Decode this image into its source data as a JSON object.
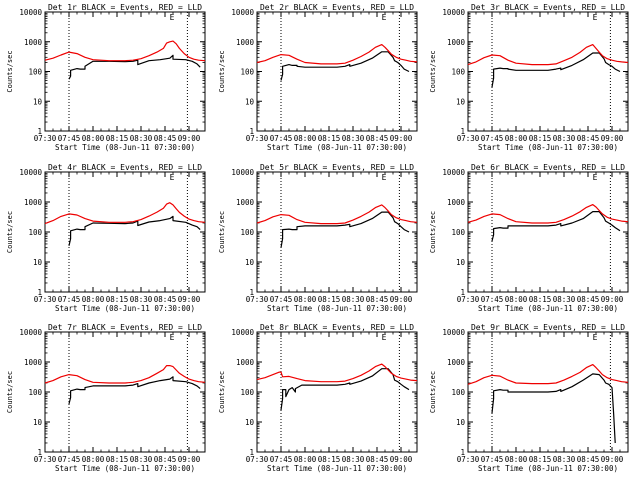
{
  "colors": {
    "events": "#000000",
    "lld": "#ee0000",
    "axis": "#000000",
    "background": "#ffffff"
  },
  "shared": {
    "ylabel": "Counts/sec",
    "xlabel": "Start Time (08-Jun-11 07:30:00)",
    "x_ticks": [
      "07:30",
      "07:45",
      "08:00",
      "08:15",
      "08:30",
      "08:45",
      "09:00"
    ],
    "y_ticks": [
      "1",
      "10",
      "100",
      "1000",
      "10000"
    ],
    "marker_E": "E"
  },
  "chart_data": [
    {
      "type": "line",
      "title": "Det 1r BLACK = Events, RED = LLD",
      "xlim": [
        0,
        100
      ],
      "ylim_log10": [
        0,
        4
      ],
      "x_unit": "minutes after 07:30",
      "y_scale": "log",
      "dashed_x": [
        15,
        89
      ],
      "series": [
        {
          "name": "BLACK = Events",
          "x": [
            15,
            16,
            16,
            20,
            22,
            25,
            25,
            30,
            40,
            50,
            55,
            58,
            58,
            65,
            72,
            78,
            80,
            80,
            88,
            92,
            95,
            97
          ],
          "y": [
            55,
            70,
            110,
            125,
            120,
            120,
            150,
            220,
            220,
            215,
            220,
            240,
            170,
            230,
            250,
            280,
            350,
            260,
            250,
            220,
            180,
            140
          ]
        },
        {
          "name": "RED = LLD",
          "x": [
            0,
            5,
            10,
            15,
            20,
            25,
            30,
            40,
            50,
            55,
            60,
            65,
            70,
            74,
            76,
            78,
            80,
            82,
            84,
            87,
            90,
            93,
            96,
            100
          ],
          "y": [
            240,
            280,
            360,
            450,
            400,
            300,
            250,
            230,
            230,
            240,
            270,
            340,
            450,
            600,
            900,
            1000,
            1050,
            850,
            600,
            400,
            300,
            260,
            240,
            230
          ]
        }
      ]
    },
    {
      "type": "line",
      "title": "Det 2r BLACK = Events, RED = LLD",
      "xlim": [
        0,
        100
      ],
      "ylim_log10": [
        0,
        4
      ],
      "x_unit": "minutes after 07:30",
      "y_scale": "log",
      "dashed_x": [
        15,
        89
      ],
      "series": [
        {
          "name": "BLACK = Events",
          "x": [
            15,
            16,
            16,
            20,
            22,
            25,
            25,
            30,
            40,
            50,
            55,
            58,
            58,
            65,
            72,
            78,
            82,
            85,
            86,
            88,
            90,
            92,
            95
          ],
          "y": [
            50,
            80,
            150,
            170,
            160,
            160,
            150,
            140,
            140,
            140,
            150,
            170,
            150,
            190,
            280,
            460,
            460,
            300,
            230,
            200,
            160,
            120,
            100
          ]
        },
        {
          "name": "RED = LLD",
          "x": [
            0,
            5,
            10,
            15,
            20,
            25,
            30,
            40,
            50,
            55,
            60,
            65,
            70,
            74,
            78,
            80,
            82,
            84,
            87,
            90,
            93,
            96,
            100
          ],
          "y": [
            200,
            230,
            300,
            370,
            350,
            260,
            200,
            180,
            180,
            190,
            240,
            320,
            450,
            650,
            800,
            650,
            500,
            380,
            300,
            260,
            240,
            220,
            210
          ]
        }
      ]
    },
    {
      "type": "line",
      "title": "Det 3r BLACK = Events, RED = LLD",
      "xlim": [
        0,
        100
      ],
      "ylim_log10": [
        0,
        4
      ],
      "x_unit": "minutes after 07:30",
      "y_scale": "log",
      "dashed_x": [
        15,
        89
      ],
      "series": [
        {
          "name": "BLACK = Events",
          "x": [
            15,
            16,
            16,
            20,
            22,
            25,
            25,
            30,
            40,
            50,
            55,
            58,
            58,
            65,
            72,
            78,
            82,
            85,
            86,
            88,
            90,
            92,
            95
          ],
          "y": [
            30,
            60,
            120,
            130,
            125,
            125,
            120,
            110,
            110,
            110,
            120,
            130,
            115,
            160,
            250,
            420,
            420,
            270,
            200,
            170,
            150,
            120,
            100
          ]
        },
        {
          "name": "RED = LLD",
          "x": [
            0,
            5,
            10,
            15,
            20,
            25,
            30,
            40,
            50,
            55,
            60,
            65,
            70,
            74,
            78,
            80,
            82,
            84,
            87,
            90,
            93,
            96,
            100
          ],
          "y": [
            170,
            210,
            290,
            360,
            340,
            240,
            190,
            170,
            170,
            180,
            230,
            300,
            440,
            650,
            800,
            600,
            450,
            340,
            270,
            240,
            220,
            210,
            200
          ]
        }
      ]
    },
    {
      "type": "line",
      "title": "Det 4r BLACK = Events, RED = LLD",
      "xlim": [
        0,
        100
      ],
      "ylim_log10": [
        0,
        4
      ],
      "x_unit": "minutes after 07:30",
      "y_scale": "log",
      "dashed_x": [
        15,
        89
      ],
      "series": [
        {
          "name": "BLACK = Events",
          "x": [
            15,
            16,
            16,
            20,
            22,
            25,
            25,
            30,
            40,
            50,
            55,
            58,
            58,
            65,
            72,
            78,
            80,
            80,
            88,
            92,
            95,
            97
          ],
          "y": [
            35,
            60,
            110,
            125,
            120,
            120,
            150,
            200,
            195,
            190,
            200,
            230,
            165,
            215,
            240,
            280,
            330,
            240,
            210,
            170,
            150,
            120
          ]
        },
        {
          "name": "RED = LLD",
          "x": [
            0,
            5,
            10,
            15,
            20,
            25,
            30,
            40,
            50,
            55,
            60,
            65,
            70,
            74,
            76,
            78,
            80,
            82,
            84,
            87,
            90,
            93,
            96,
            100
          ],
          "y": [
            190,
            240,
            330,
            400,
            370,
            280,
            230,
            210,
            210,
            220,
            260,
            340,
            460,
            620,
            850,
            950,
            800,
            600,
            450,
            340,
            270,
            240,
            220,
            210
          ]
        }
      ]
    },
    {
      "type": "line",
      "title": "Det 5r BLACK = Events, RED = LLD",
      "xlim": [
        0,
        100
      ],
      "ylim_log10": [
        0,
        4
      ],
      "x_unit": "minutes after 07:30",
      "y_scale": "log",
      "dashed_x": [
        15,
        89
      ],
      "series": [
        {
          "name": "BLACK = Events",
          "x": [
            15,
            16,
            16,
            20,
            22,
            25,
            25,
            30,
            40,
            50,
            55,
            58,
            58,
            65,
            72,
            78,
            82,
            85,
            86,
            88,
            90,
            92,
            95
          ],
          "y": [
            30,
            60,
            120,
            125,
            120,
            120,
            150,
            160,
            160,
            160,
            170,
            180,
            150,
            190,
            280,
            460,
            460,
            300,
            220,
            190,
            150,
            120,
            100
          ]
        },
        {
          "name": "RED = LLD",
          "x": [
            0,
            5,
            10,
            15,
            20,
            25,
            30,
            40,
            50,
            55,
            60,
            65,
            70,
            74,
            78,
            80,
            82,
            84,
            87,
            90,
            93,
            96,
            100
          ],
          "y": [
            200,
            240,
            320,
            380,
            360,
            260,
            210,
            190,
            190,
            200,
            250,
            330,
            460,
            650,
            800,
            650,
            500,
            380,
            300,
            260,
            240,
            220,
            210
          ]
        }
      ]
    },
    {
      "type": "line",
      "title": "Det 6r BLACK = Events, RED = LLD",
      "xlim": [
        0,
        100
      ],
      "ylim_log10": [
        0,
        4
      ],
      "x_unit": "minutes after 07:30",
      "y_scale": "log",
      "dashed_x": [
        15,
        89
      ],
      "series": [
        {
          "name": "BLACK = Events",
          "x": [
            15,
            16,
            16,
            20,
            22,
            25,
            25,
            30,
            40,
            50,
            55,
            58,
            58,
            65,
            72,
            78,
            82,
            85,
            86,
            88,
            90,
            92,
            95
          ],
          "y": [
            50,
            80,
            130,
            140,
            135,
            135,
            160,
            160,
            160,
            160,
            170,
            190,
            160,
            200,
            280,
            480,
            480,
            300,
            230,
            200,
            170,
            140,
            110
          ]
        },
        {
          "name": "RED = LLD",
          "x": [
            0,
            5,
            10,
            15,
            20,
            25,
            30,
            40,
            50,
            55,
            60,
            65,
            70,
            74,
            78,
            80,
            82,
            84,
            87,
            90,
            93,
            96,
            100
          ],
          "y": [
            210,
            250,
            330,
            400,
            380,
            280,
            220,
            200,
            200,
            210,
            260,
            340,
            470,
            660,
            820,
            680,
            520,
            400,
            310,
            270,
            250,
            230,
            220
          ]
        }
      ]
    },
    {
      "type": "line",
      "title": "Det 7r BLACK = Events, RED = LLD",
      "xlim": [
        0,
        100
      ],
      "ylim_log10": [
        0,
        4
      ],
      "x_unit": "minutes after 07:30",
      "y_scale": "log",
      "dashed_x": [
        15,
        89
      ],
      "series": [
        {
          "name": "BLACK = Events",
          "x": [
            15,
            16,
            16,
            20,
            22,
            25,
            25,
            30,
            40,
            50,
            55,
            58,
            58,
            65,
            72,
            78,
            80,
            80,
            88,
            92,
            95,
            97
          ],
          "y": [
            40,
            65,
            110,
            125,
            120,
            120,
            140,
            160,
            160,
            160,
            170,
            190,
            150,
            200,
            240,
            270,
            320,
            240,
            220,
            190,
            160,
            130
          ]
        },
        {
          "name": "RED = LLD",
          "x": [
            0,
            5,
            10,
            15,
            20,
            25,
            30,
            40,
            50,
            55,
            60,
            65,
            70,
            74,
            76,
            78,
            80,
            82,
            84,
            87,
            90,
            93,
            96,
            100
          ],
          "y": [
            200,
            240,
            320,
            380,
            350,
            260,
            210,
            200,
            200,
            210,
            240,
            300,
            420,
            560,
            760,
            760,
            700,
            540,
            420,
            330,
            270,
            240,
            220,
            210
          ]
        }
      ]
    },
    {
      "type": "line",
      "title": "Det 8r BLACK = Events, RED = LLD",
      "xlim": [
        0,
        100
      ],
      "ylim_log10": [
        0,
        4
      ],
      "x_unit": "minutes after 07:30",
      "y_scale": "log",
      "dashed_x": [
        15,
        89
      ],
      "series": [
        {
          "name": "BLACK = Events",
          "x": [
            15,
            16,
            16,
            18,
            18,
            20,
            22,
            24,
            24,
            28,
            40,
            50,
            55,
            58,
            58,
            65,
            72,
            78,
            82,
            85,
            86,
            88,
            90,
            92,
            95
          ],
          "y": [
            25,
            60,
            120,
            120,
            70,
            120,
            140,
            100,
            130,
            170,
            170,
            170,
            180,
            200,
            180,
            230,
            340,
            600,
            600,
            380,
            250,
            220,
            180,
            150,
            120
          ]
        },
        {
          "name": "RED = LLD",
          "x": [
            0,
            5,
            10,
            14,
            15,
            16,
            20,
            25,
            30,
            40,
            50,
            55,
            60,
            65,
            70,
            74,
            78,
            80,
            82,
            84,
            87,
            90,
            93,
            96,
            100
          ],
          "y": [
            260,
            300,
            380,
            460,
            460,
            320,
            330,
            280,
            240,
            220,
            220,
            230,
            280,
            360,
            500,
            700,
            850,
            700,
            540,
            420,
            330,
            290,
            270,
            250,
            240
          ]
        }
      ]
    },
    {
      "type": "line",
      "title": "Det 9r BLACK = Events, RED = LLD",
      "xlim": [
        0,
        100
      ],
      "ylim_log10": [
        0,
        4
      ],
      "x_unit": "minutes after 07:30",
      "y_scale": "log",
      "dashed_x": [
        15,
        89
      ],
      "series": [
        {
          "name": "BLACK = Events",
          "x": [
            15,
            16,
            16,
            20,
            22,
            25,
            25,
            30,
            40,
            50,
            55,
            58,
            58,
            65,
            72,
            78,
            82,
            85,
            86,
            88,
            89,
            90,
            91,
            92
          ],
          "y": [
            20,
            60,
            110,
            120,
            115,
            115,
            100,
            100,
            100,
            100,
            105,
            120,
            105,
            150,
            250,
            400,
            380,
            250,
            200,
            180,
            160,
            140,
            20,
            2
          ]
        },
        {
          "name": "RED = LLD",
          "x": [
            0,
            5,
            10,
            15,
            20,
            25,
            30,
            40,
            50,
            55,
            60,
            65,
            70,
            74,
            78,
            80,
            82,
            84,
            87,
            90,
            93,
            96,
            100
          ],
          "y": [
            180,
            220,
            300,
            360,
            340,
            250,
            200,
            190,
            190,
            200,
            250,
            330,
            450,
            650,
            820,
            650,
            500,
            380,
            300,
            260,
            240,
            220,
            210
          ]
        }
      ]
    }
  ]
}
